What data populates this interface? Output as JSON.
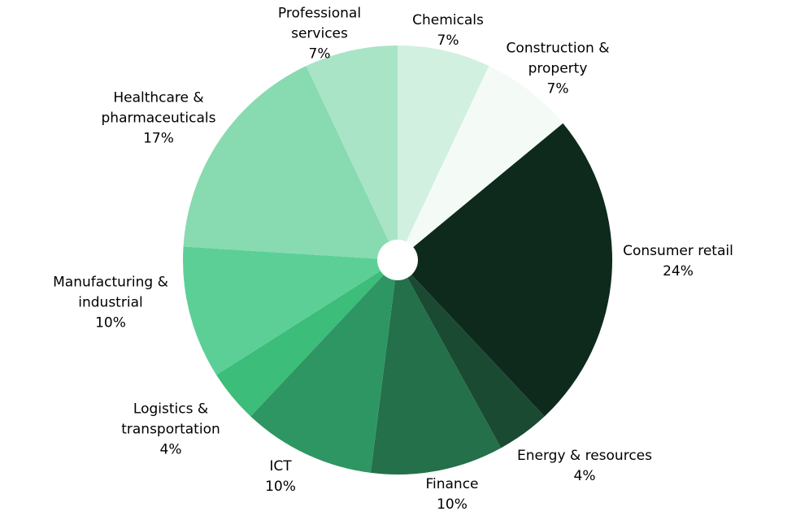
{
  "chart_data": {
    "type": "pie",
    "categories": [
      "Chemicals",
      "Construction & property",
      "Consumer retail",
      "Energy & resources",
      "Finance",
      "ICT",
      "Logistics & transportation",
      "Manufacturing & industrial",
      "Healthcare & pharmaceuticals",
      "Professional services"
    ],
    "values": [
      7,
      7,
      24,
      4,
      10,
      10,
      4,
      10,
      17,
      7
    ],
    "value_labels": [
      "7%",
      "7%",
      "24%",
      "4%",
      "10%",
      "10%",
      "4%",
      "10%",
      "17%",
      "7%"
    ],
    "colors": [
      "#d1f0e0",
      "#f4fbf7",
      "#0e2a1c",
      "#1b4a32",
      "#23704a",
      "#2e9662",
      "#3cbd7a",
      "#5ccf96",
      "#88dab0",
      "#a9e4c6"
    ]
  }
}
